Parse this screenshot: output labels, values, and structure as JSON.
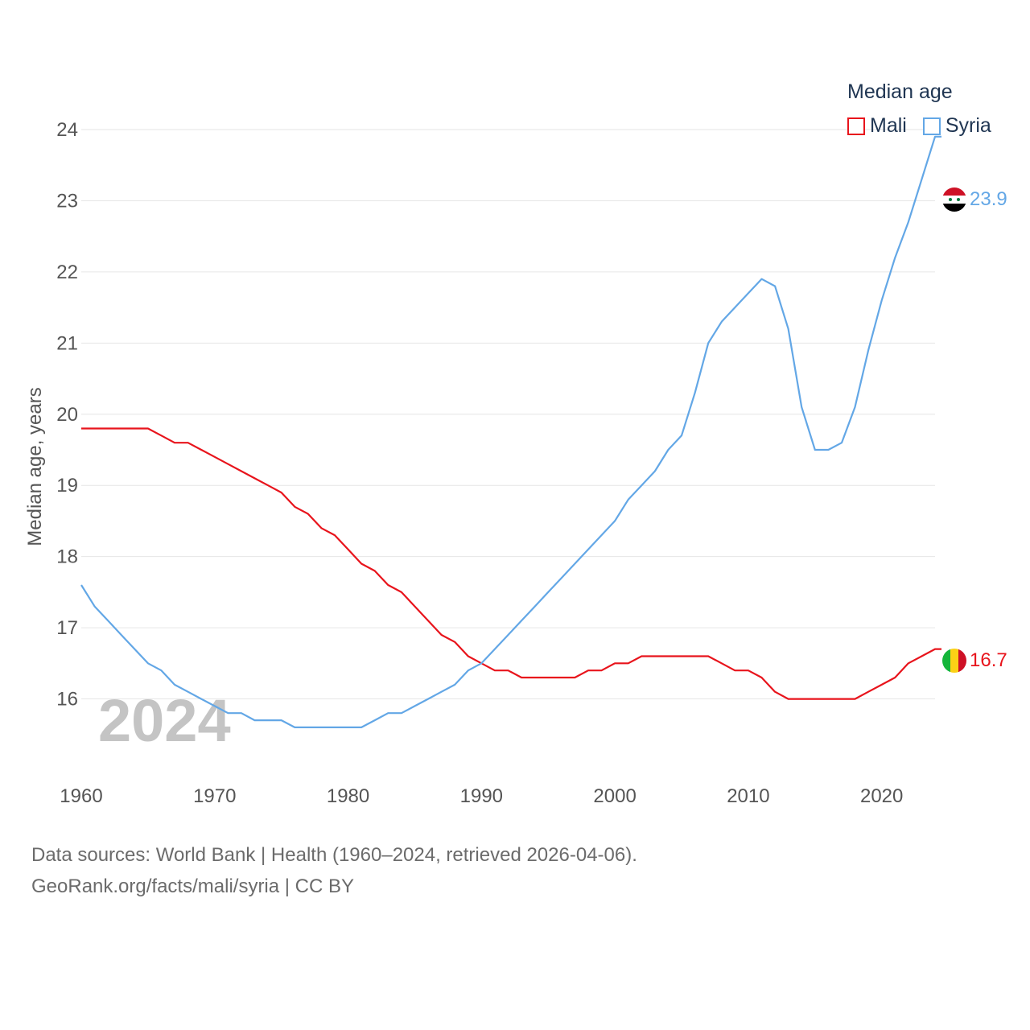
{
  "legend": {
    "title": "Median age",
    "items": [
      {
        "name": "Mali",
        "color": "#e8141c"
      },
      {
        "name": "Syria",
        "color": "#63a7e6"
      }
    ]
  },
  "year_watermark": "2024",
  "footer": {
    "line1": "Data sources: World Bank | Health (1960–2024, retrieved 2026-04-06).",
    "line2": "GeoRank.org/facts/mali/syria | CC BY"
  },
  "chart_data": {
    "type": "line",
    "ylabel": "Median age, years",
    "xlabel": "",
    "xlim": [
      1960,
      2024
    ],
    "ylim": [
      15,
      24
    ],
    "x_ticks": [
      1960,
      1970,
      1980,
      1990,
      2000,
      2010,
      2020
    ],
    "y_ticks": [
      16,
      17,
      18,
      19,
      20,
      21,
      22,
      23,
      24
    ],
    "x": [
      1960,
      1961,
      1962,
      1963,
      1964,
      1965,
      1966,
      1967,
      1968,
      1969,
      1970,
      1971,
      1972,
      1973,
      1974,
      1975,
      1976,
      1977,
      1978,
      1979,
      1980,
      1981,
      1982,
      1983,
      1984,
      1985,
      1986,
      1987,
      1988,
      1989,
      1990,
      1991,
      1992,
      1993,
      1994,
      1995,
      1996,
      1997,
      1998,
      1999,
      2000,
      2001,
      2002,
      2003,
      2004,
      2005,
      2006,
      2007,
      2008,
      2009,
      2010,
      2011,
      2012,
      2013,
      2014,
      2015,
      2016,
      2017,
      2018,
      2019,
      2020,
      2021,
      2022,
      2023,
      2024
    ],
    "series": [
      {
        "name": "Mali",
        "color": "#e8141c",
        "end_label": "16.7",
        "values": [
          19.8,
          19.8,
          19.8,
          19.8,
          19.8,
          19.8,
          19.7,
          19.6,
          19.6,
          19.5,
          19.4,
          19.3,
          19.2,
          19.1,
          19.0,
          18.9,
          18.7,
          18.6,
          18.4,
          18.3,
          18.1,
          17.9,
          17.8,
          17.6,
          17.5,
          17.3,
          17.1,
          16.9,
          16.8,
          16.6,
          16.5,
          16.4,
          16.4,
          16.3,
          16.3,
          16.3,
          16.3,
          16.3,
          16.4,
          16.4,
          16.5,
          16.5,
          16.6,
          16.6,
          16.6,
          16.6,
          16.6,
          16.6,
          16.5,
          16.4,
          16.4,
          16.3,
          16.1,
          16.0,
          16.0,
          16.0,
          16.0,
          16.0,
          16.0,
          16.1,
          16.2,
          16.3,
          16.5,
          16.6,
          16.7
        ]
      },
      {
        "name": "Syria",
        "color": "#63a7e6",
        "end_label": "23.9",
        "values": [
          17.6,
          17.3,
          17.1,
          16.9,
          16.7,
          16.5,
          16.4,
          16.2,
          16.1,
          16.0,
          15.9,
          15.8,
          15.8,
          15.7,
          15.7,
          15.7,
          15.6,
          15.6,
          15.6,
          15.6,
          15.6,
          15.6,
          15.7,
          15.8,
          15.8,
          15.9,
          16.0,
          16.1,
          16.2,
          16.4,
          16.5,
          16.7,
          16.9,
          17.1,
          17.3,
          17.5,
          17.7,
          17.9,
          18.1,
          18.3,
          18.5,
          18.8,
          19.0,
          19.2,
          19.5,
          19.7,
          20.3,
          21.0,
          21.3,
          21.5,
          21.7,
          21.9,
          21.8,
          21.2,
          20.1,
          19.5,
          19.5,
          19.6,
          20.1,
          20.9,
          21.6,
          22.2,
          22.7,
          23.3,
          23.9
        ]
      }
    ]
  }
}
